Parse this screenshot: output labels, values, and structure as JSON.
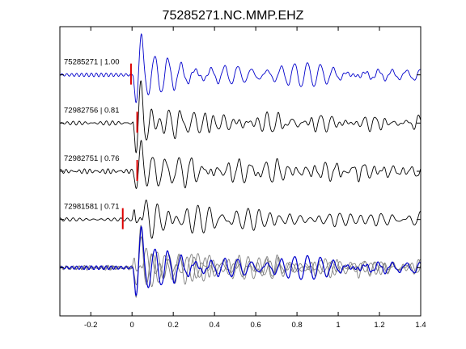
{
  "chart_data": {
    "type": "line",
    "title": "75285271.NC.MMP.EHZ",
    "xlabel": "",
    "ylabel": "",
    "xlim": [
      -0.35,
      1.4
    ],
    "ylim": [
      0,
      6
    ],
    "xticks": [
      -0.2,
      0,
      0.2,
      0.4,
      0.6,
      0.8,
      1.0,
      1.2,
      1.4
    ],
    "xtick_labels": [
      "-0.2",
      "0",
      "0.2",
      "0.4",
      "0.6",
      "0.8",
      "1",
      "1.2",
      "1.4"
    ],
    "yticks": [
      0,
      1,
      2,
      3,
      4,
      5,
      6
    ],
    "grid": false,
    "legend": "none",
    "colors": {
      "reference": "#0000cc",
      "trace": "#000000",
      "overlay": "#808080",
      "pick": "#dd0000"
    },
    "series": [
      {
        "name": "75285271 | 1.00",
        "offset": 5,
        "pick_time": -0.005,
        "lag": 0.0,
        "color": "#0000cc"
      },
      {
        "name": "72982756 | 0.81",
        "offset": 4,
        "pick_time": 0.025,
        "lag": 0.0,
        "color": "#000000"
      },
      {
        "name": "72982751 | 0.76",
        "offset": 3,
        "pick_time": 0.025,
        "lag": 0.0,
        "color": "#000000"
      },
      {
        "name": "72981581 | 0.71",
        "offset": 2,
        "pick_time": -0.045,
        "lag": -0.005,
        "color": "#000000"
      }
    ],
    "overlay_offset": 1
  }
}
